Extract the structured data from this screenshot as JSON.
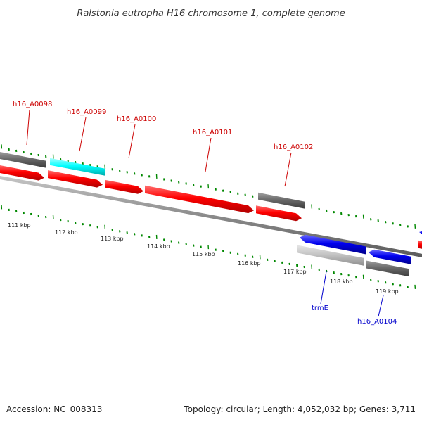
{
  "title": "Ralstonia eutropha H16 chromosome 1, complete genome",
  "footer": {
    "accession": "Accession: NC_008313",
    "summary": "Topology: circular; Length: 4,052,032 bp; Genes: 3,711"
  },
  "colors": {
    "forward_gene": "#ff0000",
    "reverse_gene": "#0000ee",
    "pseudo_gene": "#666666",
    "rna_gene": "#00ffff",
    "light_gene": "#bbbbbb",
    "ticks": "#008800",
    "forward_label": "#cc0000",
    "reverse_label": "#0000cc",
    "backbone": "#888888"
  },
  "kbp_labels": [
    "111 kbp",
    "112 kbp",
    "113 kbp",
    "114 kbp",
    "115 kbp",
    "116 kbp",
    "117 kbp",
    "118 kbp",
    "119 kbp"
  ],
  "gene_labels": [
    {
      "text": "h16_A0098",
      "strand": "forward"
    },
    {
      "text": "h16_A0099",
      "strand": "forward"
    },
    {
      "text": "h16_A0100",
      "strand": "forward"
    },
    {
      "text": "h16_A0101",
      "strand": "forward"
    },
    {
      "text": "h16_A0102",
      "strand": "forward"
    },
    {
      "text": "trmE",
      "strand": "reverse"
    },
    {
      "text": "h16_A0104",
      "strand": "reverse"
    }
  ]
}
